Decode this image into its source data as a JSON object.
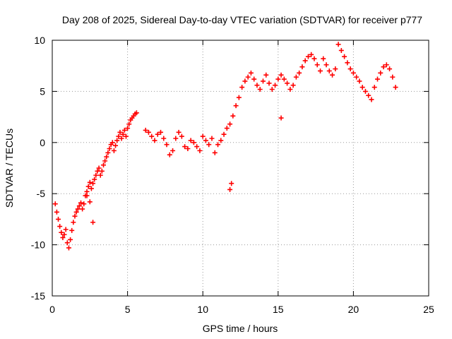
{
  "chart_data": {
    "type": "scatter",
    "title": "Day 208 of 2025, Sidereal Day-to-day VTEC variation (SDTVAR) for receiver p777",
    "xlabel": "GPS time / hours",
    "ylabel": "SDTVAR / TECUs",
    "xlim": [
      0,
      25
    ],
    "ylim": [
      -15,
      10
    ],
    "xticks": [
      "0",
      "5",
      "10",
      "15",
      "20",
      "25"
    ],
    "yticks": [
      "10",
      "5",
      "0",
      "-5",
      "-10",
      "-15"
    ],
    "grid": true,
    "marker": "+",
    "series": [
      {
        "name": "SDTVAR",
        "color": "#ff0000",
        "x": [
          0.2,
          0.3,
          0.4,
          0.5,
          0.6,
          0.7,
          0.8,
          0.9,
          1.0,
          1.1,
          1.2,
          1.3,
          1.4,
          1.5,
          1.6,
          1.7,
          1.8,
          1.9,
          2.0,
          2.1,
          2.2,
          2.3,
          2.4,
          2.5,
          2.6,
          2.7,
          2.8,
          2.9,
          3.0,
          3.1,
          3.2,
          3.3,
          3.4,
          3.5,
          3.6,
          3.7,
          3.8,
          3.9,
          4.0,
          4.1,
          4.2,
          4.3,
          4.4,
          4.5,
          4.6,
          4.7,
          4.8,
          4.9,
          5.0,
          5.1,
          5.2,
          5.3,
          5.4,
          5.5,
          5.6,
          6.2,
          6.4,
          6.6,
          6.8,
          7.0,
          7.2,
          7.4,
          7.6,
          7.8,
          8.0,
          8.2,
          8.4,
          8.6,
          8.8,
          9.0,
          9.2,
          9.4,
          9.6,
          9.8,
          10.0,
          10.2,
          10.4,
          10.6,
          10.8,
          11.0,
          11.2,
          11.4,
          11.6,
          11.8,
          12.0,
          12.2,
          12.4,
          12.6,
          12.8,
          13.0,
          13.2,
          13.4,
          13.6,
          13.8,
          14.0,
          14.2,
          14.4,
          14.6,
          14.8,
          15.0,
          15.2,
          15.4,
          15.6,
          15.8,
          16.0,
          16.2,
          16.4,
          16.6,
          16.8,
          17.0,
          17.2,
          17.4,
          17.6,
          17.8,
          18.0,
          18.2,
          18.4,
          18.6,
          18.8,
          19.0,
          19.2,
          19.4,
          19.6,
          19.8,
          20.0,
          20.2,
          20.4,
          20.6,
          20.8,
          21.0,
          21.2,
          21.4,
          21.6,
          21.8,
          22.0,
          22.2,
          22.4,
          22.6,
          22.8,
          2.3,
          2.5,
          2.7,
          11.8,
          11.9,
          15.2
        ],
        "y": [
          -6.0,
          -6.8,
          -7.5,
          -8.2,
          -8.8,
          -9.3,
          -9.0,
          -8.5,
          -9.8,
          -10.3,
          -9.5,
          -8.6,
          -7.8,
          -7.2,
          -6.8,
          -6.5,
          -6.2,
          -5.9,
          -6.5,
          -6.0,
          -5.2,
          -4.8,
          -4.3,
          -3.9,
          -4.5,
          -4.0,
          -3.6,
          -3.2,
          -2.8,
          -2.5,
          -3.2,
          -2.8,
          -2.2,
          -1.8,
          -1.4,
          -1.0,
          -0.6,
          -0.2,
          0.0,
          -0.8,
          -0.3,
          0.2,
          0.6,
          1.0,
          0.4,
          0.8,
          1.2,
          0.6,
          1.4,
          1.8,
          2.2,
          2.4,
          2.6,
          2.8,
          2.9,
          1.2,
          1.0,
          0.6,
          0.2,
          0.8,
          1.0,
          0.4,
          -0.2,
          -1.2,
          -0.8,
          0.4,
          1.0,
          0.6,
          -0.4,
          -0.6,
          0.2,
          0.0,
          -0.4,
          -0.8,
          0.6,
          0.2,
          -0.2,
          0.4,
          -1.0,
          -0.2,
          0.2,
          0.8,
          1.4,
          1.8,
          2.6,
          3.6,
          4.4,
          5.4,
          6.0,
          6.4,
          6.8,
          6.2,
          5.6,
          5.2,
          6.0,
          6.6,
          5.8,
          5.2,
          5.6,
          6.2,
          6.6,
          6.2,
          5.8,
          5.2,
          5.6,
          6.4,
          6.8,
          7.4,
          8.0,
          8.4,
          8.6,
          8.2,
          7.6,
          7.0,
          8.2,
          7.6,
          7.0,
          6.6,
          7.2,
          9.6,
          9.0,
          8.4,
          7.8,
          7.2,
          6.8,
          6.4,
          6.0,
          5.4,
          5.0,
          4.6,
          4.2,
          5.4,
          6.2,
          6.8,
          7.4,
          7.6,
          7.2,
          6.4,
          5.4,
          -5.2,
          -5.8,
          -7.8,
          -4.6,
          -4.0,
          2.4
        ]
      }
    ]
  }
}
